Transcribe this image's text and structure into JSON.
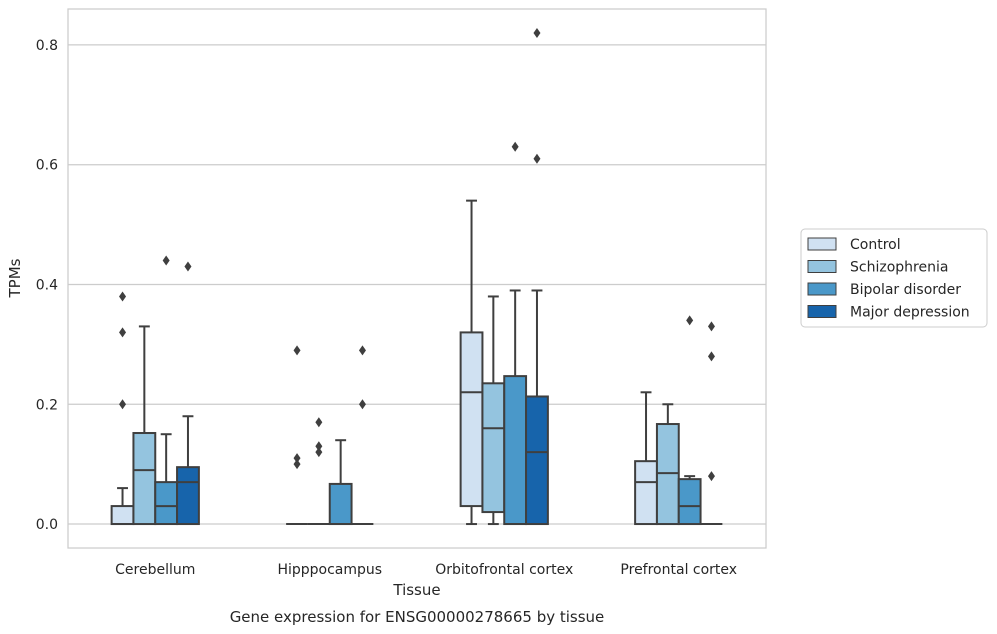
{
  "caption": "Gene expression for ENSG00000278665 by tissue",
  "chart_data": {
    "type": "box",
    "xlabel": "Tissue",
    "ylabel": "TPMs",
    "ylim": [
      -0.04,
      0.86
    ],
    "yticks": [
      0.0,
      0.2,
      0.4,
      0.6,
      0.8
    ],
    "ytick_labels": [
      "0.0",
      "0.2",
      "0.4",
      "0.6",
      "0.8"
    ],
    "grid": "horizontal",
    "legend_position": "right",
    "categories": [
      "Cerebellum",
      "Hipppocampus",
      "Orbitofrontal cortex",
      "Prefrontal cortex"
    ],
    "series": [
      {
        "name": "Control",
        "color": "#d0e1f2",
        "boxes": [
          {
            "q1": 0.0,
            "median": 0.0,
            "q3": 0.03,
            "whisker_low": 0.0,
            "whisker_high": 0.06,
            "outliers": [
              0.2,
              0.32,
              0.38
            ]
          },
          {
            "q1": 0.0,
            "median": 0.0,
            "q3": 0.0,
            "whisker_low": 0.0,
            "whisker_high": 0.0,
            "outliers": [
              0.1,
              0.11,
              0.29
            ]
          },
          {
            "q1": 0.03,
            "median": 0.22,
            "q3": 0.32,
            "whisker_low": 0.0,
            "whisker_high": 0.54,
            "outliers": []
          },
          {
            "q1": 0.0,
            "median": 0.07,
            "q3": 0.105,
            "whisker_low": 0.0,
            "whisker_high": 0.22,
            "outliers": []
          }
        ]
      },
      {
        "name": "Schizophrenia",
        "color": "#94c4df",
        "boxes": [
          {
            "q1": 0.0,
            "median": 0.09,
            "q3": 0.152,
            "whisker_low": 0.0,
            "whisker_high": 0.33,
            "outliers": []
          },
          {
            "q1": 0.0,
            "median": 0.0,
            "q3": 0.0,
            "whisker_low": 0.0,
            "whisker_high": 0.0,
            "outliers": [
              0.12,
              0.13,
              0.17
            ]
          },
          {
            "q1": 0.02,
            "median": 0.16,
            "q3": 0.235,
            "whisker_low": 0.0,
            "whisker_high": 0.38,
            "outliers": []
          },
          {
            "q1": 0.0,
            "median": 0.085,
            "q3": 0.167,
            "whisker_low": 0.0,
            "whisker_high": 0.2,
            "outliers": []
          }
        ]
      },
      {
        "name": "Bipolar disorder",
        "color": "#4a98c9",
        "boxes": [
          {
            "q1": 0.0,
            "median": 0.03,
            "q3": 0.07,
            "whisker_low": 0.0,
            "whisker_high": 0.15,
            "outliers": [
              0.44
            ]
          },
          {
            "q1": 0.0,
            "median": 0.0,
            "q3": 0.067,
            "whisker_low": 0.0,
            "whisker_high": 0.14,
            "outliers": []
          },
          {
            "q1": 0.0,
            "median": 0.0,
            "q3": 0.247,
            "whisker_low": 0.0,
            "whisker_high": 0.39,
            "outliers": [
              0.63
            ]
          },
          {
            "q1": 0.0,
            "median": 0.03,
            "q3": 0.075,
            "whisker_low": 0.0,
            "whisker_high": 0.08,
            "outliers": [
              0.34
            ]
          }
        ]
      },
      {
        "name": "Major depression",
        "color": "#1764ab",
        "boxes": [
          {
            "q1": 0.0,
            "median": 0.07,
            "q3": 0.095,
            "whisker_low": 0.0,
            "whisker_high": 0.18,
            "outliers": [
              0.43
            ]
          },
          {
            "q1": 0.0,
            "median": 0.0,
            "q3": 0.0,
            "whisker_low": 0.0,
            "whisker_high": 0.0,
            "outliers": [
              0.2,
              0.29
            ]
          },
          {
            "q1": 0.0,
            "median": 0.12,
            "q3": 0.213,
            "whisker_low": 0.0,
            "whisker_high": 0.39,
            "outliers": [
              0.61,
              0.82
            ]
          },
          {
            "q1": 0.0,
            "median": 0.0,
            "q3": 0.0,
            "whisker_low": 0.0,
            "whisker_high": 0.0,
            "outliers": [
              0.08,
              0.28,
              0.33
            ]
          }
        ]
      }
    ]
  }
}
